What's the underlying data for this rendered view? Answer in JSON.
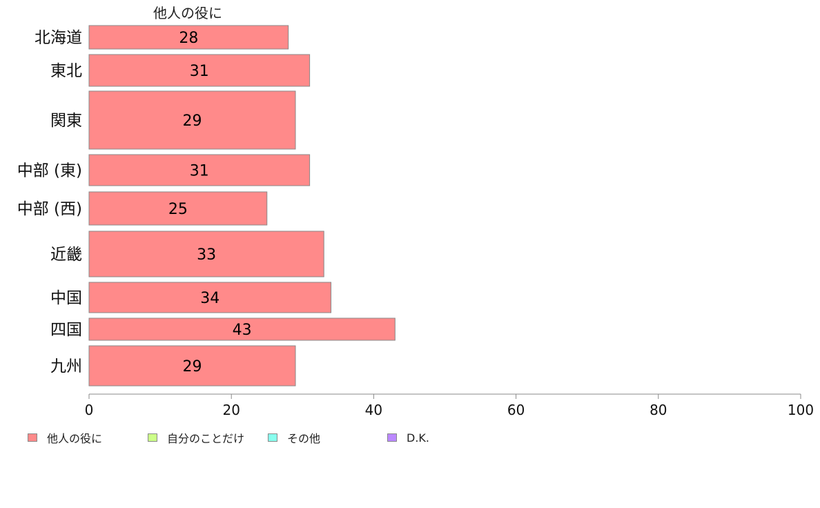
{
  "chart_data": {
    "type": "bar",
    "orientation": "horizontal",
    "title": "他人の役に",
    "categories": [
      "北海道",
      "東北",
      "関東",
      "中部 (東)",
      "中部 (西)",
      "近畿",
      "中国",
      "四国",
      "九州"
    ],
    "series": [
      {
        "name": "他人の役に",
        "values": [
          28,
          31,
          29,
          31,
          25,
          33,
          34,
          43,
          29
        ],
        "color": "#ff8a8a"
      }
    ],
    "xlim": [
      0,
      100
    ],
    "xticks": [
      0,
      20,
      40,
      60,
      80,
      100
    ],
    "grid": false,
    "legend_position": "bottom-left"
  },
  "legend": [
    {
      "label": "他人の役に",
      "color": "#ff8a8a"
    },
    {
      "label": "自分のことだけ",
      "color": "#ccff88"
    },
    {
      "label": "その他",
      "color": "#88ffee"
    },
    {
      "label": "D.K.",
      "color": "#bb88ff"
    }
  ],
  "colors": {
    "axis": "#888888",
    "bar_border": "#888888"
  }
}
